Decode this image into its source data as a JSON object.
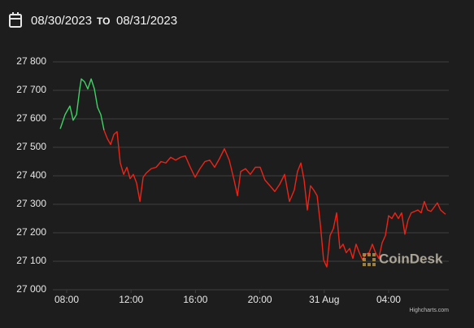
{
  "header": {
    "date_from": "08/30/2023",
    "separator": "TO",
    "date_to": "08/31/2023"
  },
  "chart_data": {
    "type": "line",
    "watermark": "CoinDesk",
    "credits": "Highcharts.com",
    "xlim": [
      7.14,
      31.74
    ],
    "xticks": [
      {
        "value": 8,
        "label": "08:00"
      },
      {
        "value": 12,
        "label": "12:00"
      },
      {
        "value": 16,
        "label": "16:00"
      },
      {
        "value": 20,
        "label": "20:00"
      },
      {
        "value": 24,
        "label": "31 Aug"
      },
      {
        "value": 28,
        "label": "04:00"
      }
    ],
    "ylim": [
      27000,
      27800
    ],
    "yticks": [
      {
        "value": 27000,
        "label": "27 000"
      },
      {
        "value": 27100,
        "label": "27 100"
      },
      {
        "value": 27200,
        "label": "27 200"
      },
      {
        "value": 27300,
        "label": "27 300"
      },
      {
        "value": 27400,
        "label": "27 400"
      },
      {
        "value": 27500,
        "label": "27 500"
      },
      {
        "value": 27600,
        "label": "27 600"
      },
      {
        "value": 27700,
        "label": "27 700"
      },
      {
        "value": 27800,
        "label": "27 800"
      }
    ],
    "grid": true,
    "series": [
      {
        "color": "#3fd264",
        "x": [
          7.6,
          7.9,
          8.2,
          8.4,
          8.61,
          8.81,
          8.91,
          9.11,
          9.31,
          9.52,
          9.72,
          9.92,
          10.12,
          10.32
        ],
        "values": [
          27565,
          27615,
          27645,
          27595,
          27615,
          27705,
          27740,
          27730,
          27705,
          27740,
          27705,
          27640,
          27615,
          27560
        ]
      },
      {
        "color": "#ec2418",
        "x": [
          10.32,
          10.53,
          10.73,
          10.93,
          11.13,
          11.33,
          11.54,
          11.74,
          11.94,
          12.14,
          12.34,
          12.55,
          12.75,
          12.95,
          13.25,
          13.56,
          13.86,
          14.16,
          14.46,
          14.77,
          15.07,
          15.37,
          15.68,
          15.98,
          16.28,
          16.59,
          16.89,
          17.19,
          17.49,
          17.8,
          18.1,
          18.4,
          18.61,
          18.81,
          19.11,
          19.41,
          19.72,
          20.02,
          20.32,
          20.63,
          20.93,
          21.23,
          21.54,
          21.84,
          22.14,
          22.34,
          22.55,
          22.75,
          22.95,
          23.15,
          23.35,
          23.56,
          23.76,
          23.96,
          24.16,
          24.36,
          24.57,
          24.77,
          24.97,
          25.17,
          25.37,
          25.58,
          25.78,
          25.98,
          26.18,
          26.38,
          26.59,
          26.79,
          26.99,
          27.19,
          27.39,
          27.6,
          27.8,
          28.0,
          28.2,
          28.4,
          28.61,
          28.81,
          29.01,
          29.21,
          29.41,
          29.62,
          29.82,
          30.02,
          30.22,
          30.42,
          30.63,
          30.83,
          31.03,
          31.23,
          31.43,
          31.54
        ],
        "values": [
          27560,
          27530,
          27510,
          27545,
          27555,
          27445,
          27405,
          27430,
          27390,
          27405,
          27375,
          27310,
          27395,
          27410,
          27425,
          27430,
          27450,
          27445,
          27465,
          27455,
          27465,
          27470,
          27430,
          27395,
          27425,
          27450,
          27455,
          27430,
          27460,
          27495,
          27455,
          27385,
          27330,
          27415,
          27425,
          27405,
          27430,
          27430,
          27385,
          27365,
          27345,
          27370,
          27405,
          27310,
          27350,
          27415,
          27445,
          27385,
          27280,
          27365,
          27350,
          27330,
          27230,
          27105,
          27080,
          27190,
          27215,
          27270,
          27145,
          27160,
          27130,
          27145,
          27110,
          27160,
          27130,
          27105,
          27125,
          27130,
          27160,
          27130,
          27110,
          27165,
          27190,
          27260,
          27250,
          27270,
          27250,
          27270,
          27195,
          27245,
          27270,
          27275,
          27280,
          27270,
          27310,
          27280,
          27275,
          27290,
          27305,
          27280,
          27270,
          27265
        ]
      }
    ]
  }
}
